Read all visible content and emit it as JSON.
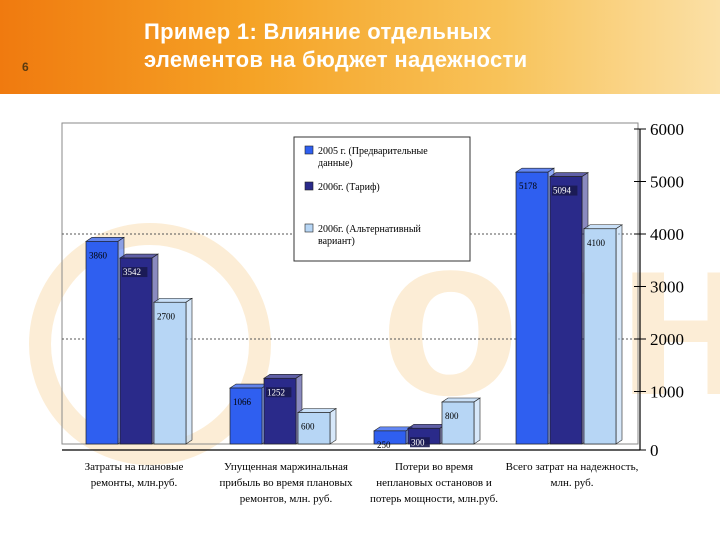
{
  "slide": {
    "number": "6",
    "title_line1": "Пример 1: Влияние отдельных",
    "title_line2": "элементов на бюджет надежности"
  },
  "colors": {
    "series1": "#2f5ff0",
    "series2": "#2a2a8a",
    "series3": "#b7d6f5",
    "header_start": "#f07a0f",
    "header_end": "#fbe0a6"
  },
  "watermark_text": "огн",
  "chart_data": {
    "type": "bar",
    "title": "",
    "xlabel": "",
    "ylabel": "",
    "ylim": [
      0,
      6000
    ],
    "yticks": [
      "0",
      "1000",
      "2000",
      "3000",
      "4000",
      "5000",
      "6000"
    ],
    "gridlines": [
      2000,
      4000
    ],
    "categories": [
      [
        "Затраты на плановые",
        "ремонты, млн.руб."
      ],
      [
        "Упущенная маржинальная",
        "прибыль во время плановых",
        "ремонтов, млн. руб."
      ],
      [
        "Потери во время",
        "неплановых остановов и",
        "потерь мощности, млн.руб."
      ],
      [
        "Всего затрат на надежность,",
        "млн. руб."
      ]
    ],
    "series": [
      {
        "name": "2005 г. (Предварительные данные)",
        "values": [
          3860,
          1066,
          250,
          5178
        ],
        "labels": [
          "3860",
          "1066",
          "250",
          "5178"
        ]
      },
      {
        "name": "2006г. (Тариф)",
        "values": [
          3542,
          1252,
          300,
          5094
        ],
        "labels": [
          "3542",
          "1252",
          "300",
          "5094"
        ]
      },
      {
        "name": "2006г. (Альтернативный вариант)",
        "values": [
          2700,
          600,
          800,
          4100
        ],
        "labels": [
          "2700",
          "600",
          "800",
          "4100"
        ]
      }
    ],
    "legend_position": "top-center"
  }
}
